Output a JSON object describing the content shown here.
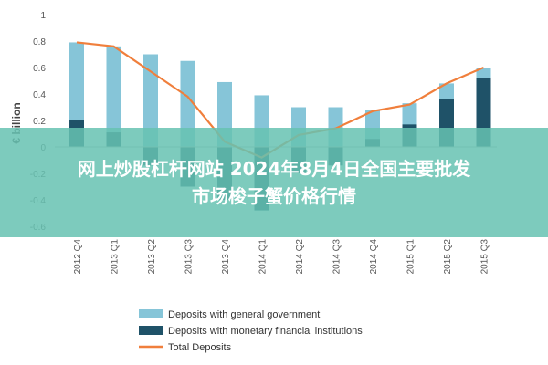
{
  "chart_data": {
    "type": "bar",
    "ylabel": "€ billion",
    "ylim": [
      -0.6,
      1
    ],
    "yticks": [
      "1",
      "0.8",
      "0.6",
      "0.4",
      "0.2",
      "0",
      "-0.2",
      "-0.4",
      "-0.6"
    ],
    "ytick_values": [
      1,
      0.8,
      0.6,
      0.4,
      0.2,
      0,
      -0.2,
      -0.4,
      -0.6
    ],
    "categories": [
      "2012 Q4",
      "2013 Q1",
      "2013 Q2",
      "2013 Q3",
      "2013 Q4",
      "2014 Q1",
      "2014 Q2",
      "2014 Q3",
      "2014 Q4",
      "2015 Q1",
      "2015 Q2",
      "2015 Q3"
    ],
    "series": [
      {
        "name": "Deposits with general government",
        "kind": "bar",
        "color": "#86c5d8",
        "values": [
          0.79,
          0.76,
          0.7,
          0.65,
          0.49,
          0.39,
          0.3,
          0.3,
          0.28,
          0.33,
          0.48,
          0.6
        ]
      },
      {
        "name": "Deposits with monetary financial institutions",
        "kind": "bar",
        "color": "#1f5268",
        "values": [
          0.2,
          0.11,
          -0.14,
          -0.3,
          -0.4,
          -0.48,
          -0.2,
          -0.14,
          0.06,
          0.17,
          0.36,
          0.52
        ]
      },
      {
        "name": "Total Deposits",
        "kind": "line",
        "color": "#f07f3c",
        "values": [
          0.79,
          0.76,
          0.57,
          0.38,
          0.04,
          -0.08,
          0.09,
          0.14,
          0.27,
          0.32,
          0.48,
          0.6
        ]
      }
    ],
    "legend_position": "bottom-left",
    "grid": false
  },
  "overlay": {
    "line1": "网上炒股杠杆网站 2024年8月4日全国主要批发",
    "line2": "市场梭子蟹价格行情"
  }
}
